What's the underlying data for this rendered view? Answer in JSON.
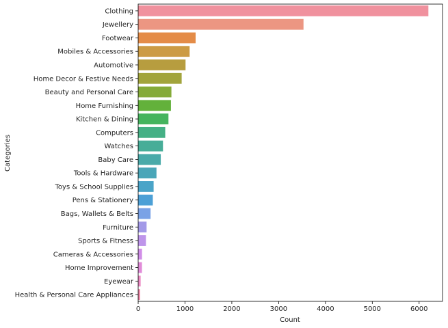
{
  "chart_data": {
    "type": "bar",
    "orientation": "horizontal",
    "xlabel": "Count",
    "ylabel": "Categories",
    "xlim": [
      0,
      6500
    ],
    "xticks": [
      0,
      1000,
      2000,
      3000,
      4000,
      5000,
      6000
    ],
    "xtick_labels": [
      "0",
      "1000",
      "2000",
      "3000",
      "4000",
      "5000",
      "6000"
    ],
    "grid": false,
    "categories": [
      "Clothing",
      "Jewellery",
      "Footwear",
      "Mobiles & Accessories",
      "Automotive",
      "Home Decor & Festive Needs",
      "Beauty and Personal Care",
      "Home Furnishing",
      "Kitchen & Dining",
      "Computers",
      "Watches",
      "Baby Care",
      "Tools & Hardware",
      "Toys & School Supplies",
      "Pens & Stationery",
      "Bags, Wallets & Belts",
      "Furniture",
      "Sports & Fitness",
      "Cameras & Accessories",
      "Home Improvement",
      "Eyewear",
      "Health & Personal Care Appliances"
    ],
    "values": [
      6198,
      3531,
      1227,
      1099,
      1012,
      929,
      710,
      700,
      647,
      578,
      530,
      483,
      391,
      330,
      313,
      265,
      180,
      166,
      82,
      81,
      53,
      43
    ],
    "colors": [
      "#f0919e",
      "#ec9682",
      "#e48c48",
      "#cc9b44",
      "#b79d3f",
      "#a2a43c",
      "#85ab39",
      "#63b13b",
      "#45b45e",
      "#45b085",
      "#47ad98",
      "#49aaa9",
      "#4aa6b8",
      "#4aa4c8",
      "#4ca0d6",
      "#7aa2e6",
      "#a39ae8",
      "#be95ea",
      "#d18ee8",
      "#e18bd8",
      "#ec8bc4",
      "#f08cab"
    ]
  }
}
